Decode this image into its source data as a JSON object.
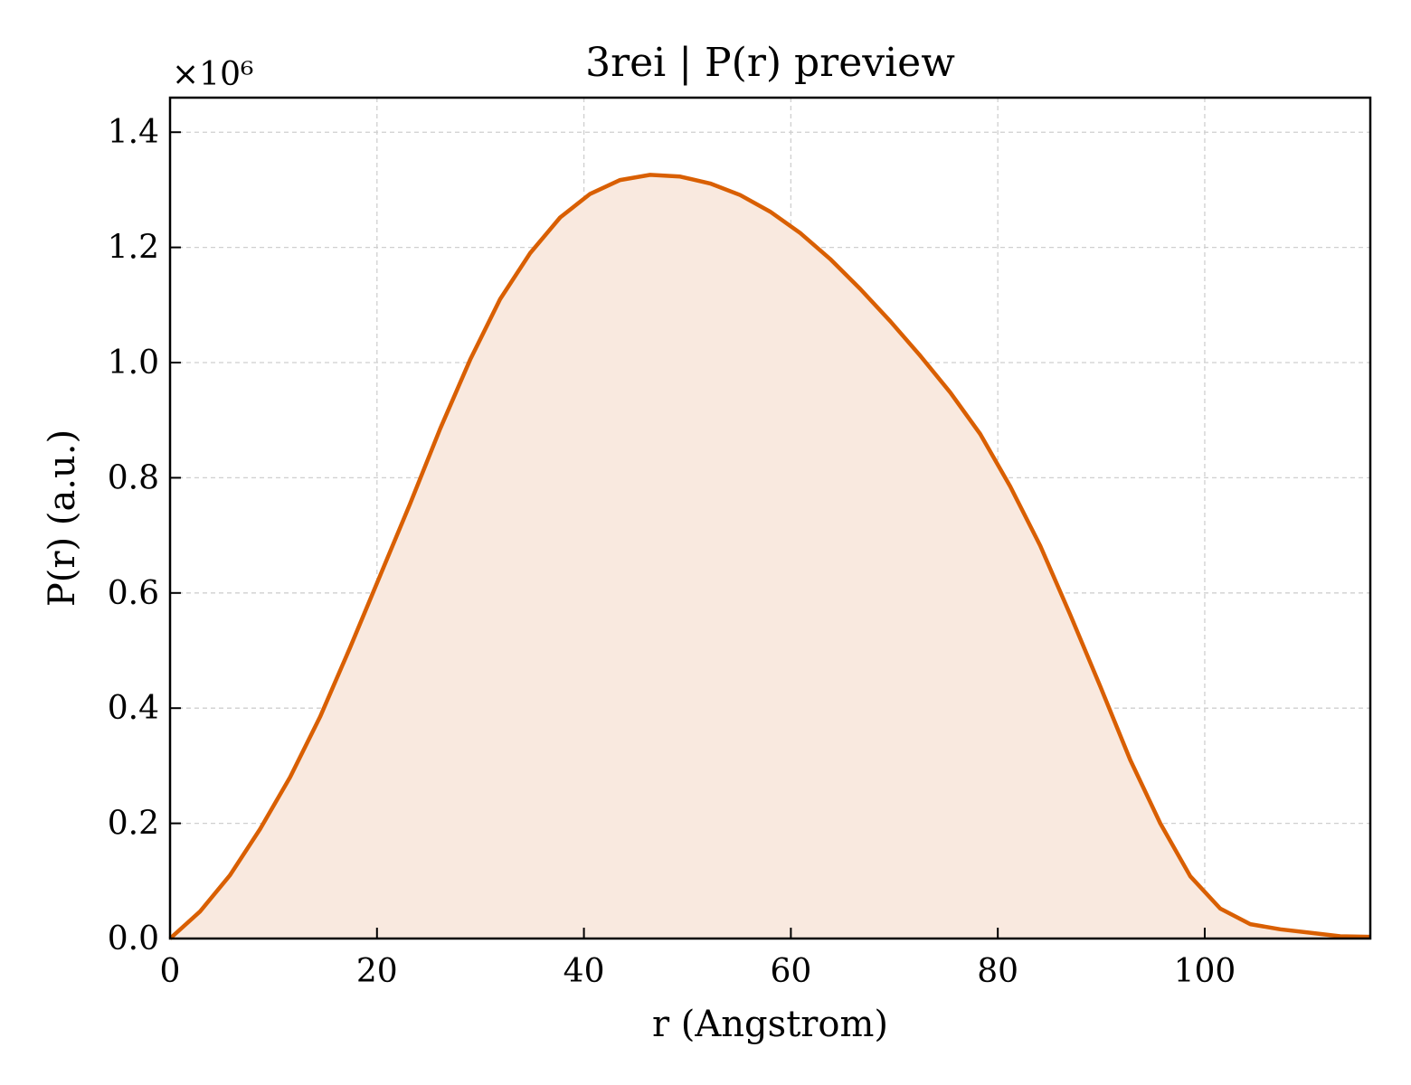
{
  "chart_data": {
    "type": "area",
    "title": "3rei | P(r) preview",
    "xlabel": "r (Angstrom)",
    "ylabel": "P(r) (a.u.)",
    "y_multiplier_label": "×10⁶",
    "xlim": [
      0,
      116
    ],
    "ylim": [
      0,
      1.46
    ],
    "x_ticks": [
      0,
      20,
      40,
      60,
      80,
      100
    ],
    "x_tick_labels": [
      "0",
      "20",
      "40",
      "60",
      "80",
      "100"
    ],
    "y_ticks": [
      0.0,
      0.2,
      0.4,
      0.6,
      0.8,
      1.0,
      1.2,
      1.4
    ],
    "y_tick_labels": [
      "0.0",
      "0.2",
      "0.4",
      "0.6",
      "0.8",
      "1.0",
      "1.2",
      "1.4"
    ],
    "grid": true,
    "colors": {
      "line": "#d95f02",
      "fill": "#f9e9df"
    },
    "series": [
      {
        "x": [
          0,
          2.9,
          5.8,
          8.7,
          11.6,
          14.5,
          17.4,
          20.3,
          23.2,
          26.1,
          29.0,
          31.9,
          34.8,
          37.7,
          40.6,
          43.5,
          46.4,
          49.3,
          52.2,
          55.1,
          58.0,
          60.9,
          63.8,
          66.7,
          69.6,
          72.5,
          75.4,
          78.3,
          81.2,
          84.1,
          87.0,
          89.9,
          92.8,
          95.7,
          98.6,
          101.5,
          104.4,
          107.3,
          110.2,
          113.1,
          116.0
        ],
        "y": [
          0.0,
          0.047,
          0.11,
          0.19,
          0.28,
          0.385,
          0.505,
          0.63,
          0.755,
          0.885,
          1.005,
          1.11,
          1.19,
          1.252,
          1.293,
          1.317,
          1.326,
          1.323,
          1.311,
          1.291,
          1.262,
          1.225,
          1.18,
          1.128,
          1.072,
          1.012,
          0.948,
          0.876,
          0.785,
          0.682,
          0.562,
          0.438,
          0.31,
          0.2,
          0.108,
          0.052,
          0.025,
          0.016,
          0.01,
          0.004,
          0.003
        ]
      }
    ]
  }
}
